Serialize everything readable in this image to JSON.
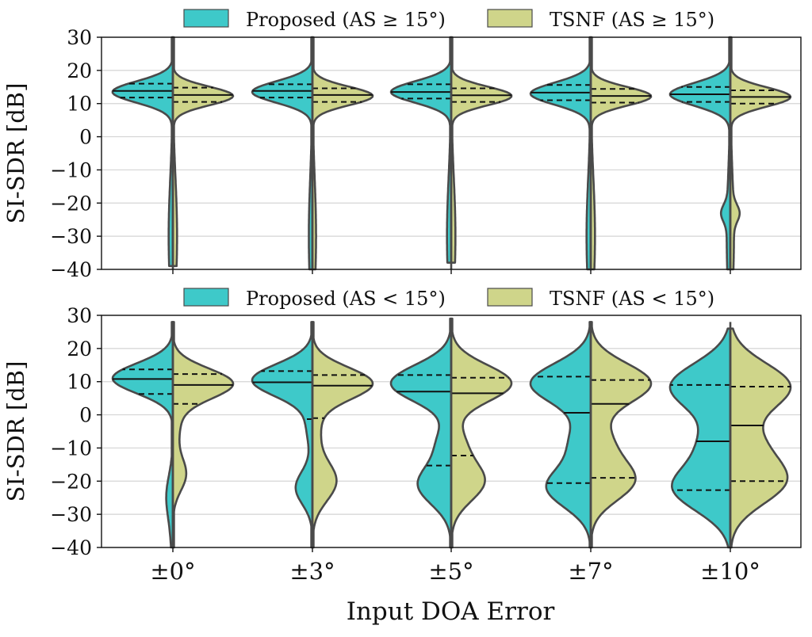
{
  "chart_data": [
    {
      "type": "violin",
      "ylabel": "SI-SDR [dB]",
      "xlabel": "",
      "ylim": [
        -40,
        30
      ],
      "yticks": [
        "30",
        "20",
        "10",
        "0",
        "−10",
        "−20",
        "−30",
        "−40"
      ],
      "categories": [
        "±0°",
        "±3°",
        "±5°",
        "±7°",
        "±10°"
      ],
      "grid": true,
      "legend": "top",
      "series": [
        {
          "name": "Proposed (AS ≥ 15°)",
          "color": "#3ec9c9",
          "side": "left",
          "groups": [
            {
              "min": -39,
              "max": 30,
              "q1": 11.8,
              "median": 13.8,
              "q3": 16.0,
              "modes": [
                [
                  13.5,
                  1.0,
                  3.2
                ],
                [
                  -30,
                  0.07,
                  18
                ]
              ]
            },
            {
              "min": -40,
              "max": 30,
              "q1": 11.8,
              "median": 13.8,
              "q3": 15.8,
              "modes": [
                [
                  13.5,
                  1.0,
                  3.2
                ],
                [
                  -30,
                  0.06,
                  18
                ]
              ]
            },
            {
              "min": -38,
              "max": 30,
              "q1": 11.5,
              "median": 13.5,
              "q3": 15.8,
              "modes": [
                [
                  13.5,
                  1.0,
                  3.2
                ],
                [
                  -30,
                  0.07,
                  18
                ]
              ]
            },
            {
              "min": -40,
              "max": 30,
              "q1": 11.0,
              "median": 13.3,
              "q3": 15.6,
              "modes": [
                [
                  13.0,
                  1.0,
                  3.3
                ],
                [
                  -30,
                  0.07,
                  18
                ]
              ]
            },
            {
              "min": -40,
              "max": 30,
              "q1": 10.5,
              "median": 12.8,
              "q3": 15.0,
              "modes": [
                [
                  12.8,
                  1.0,
                  3.4
                ],
                [
                  -23,
                  0.1,
                  2.5
                ],
                [
                  -30,
                  0.06,
                  18
                ]
              ]
            }
          ]
        },
        {
          "name": "TSNF (AS ≥ 15°)",
          "color": "#cfd58a",
          "side": "right",
          "groups": [
            {
              "min": -39,
              "max": 30,
              "q1": 10.5,
              "median": 12.6,
              "q3": 14.8,
              "modes": [
                [
                  12.3,
                  1.0,
                  2.8
                ],
                [
                  -30,
                  0.07,
                  18
                ]
              ]
            },
            {
              "min": -40,
              "max": 30,
              "q1": 10.5,
              "median": 12.6,
              "q3": 14.6,
              "modes": [
                [
                  12.3,
                  1.0,
                  2.8
                ],
                [
                  -30,
                  0.06,
                  18
                ]
              ]
            },
            {
              "min": -38,
              "max": 30,
              "q1": 10.5,
              "median": 12.5,
              "q3": 14.6,
              "modes": [
                [
                  12.3,
                  1.0,
                  2.8
                ],
                [
                  -30,
                  0.07,
                  18
                ]
              ]
            },
            {
              "min": -40,
              "max": 30,
              "q1": 10.3,
              "median": 12.3,
              "q3": 14.4,
              "modes": [
                [
                  12.2,
                  1.0,
                  2.8
                ],
                [
                  -30,
                  0.07,
                  18
                ]
              ]
            },
            {
              "min": -40,
              "max": 30,
              "q1": 10.0,
              "median": 12.0,
              "q3": 14.0,
              "modes": [
                [
                  12.0,
                  1.0,
                  2.9
                ],
                [
                  -23,
                  0.1,
                  2.5
                ],
                [
                  -30,
                  0.06,
                  18
                ]
              ]
            }
          ]
        }
      ]
    },
    {
      "type": "violin",
      "ylabel": "SI-SDR [dB]",
      "xlabel": "Input DOA Error",
      "ylim": [
        -40,
        30
      ],
      "yticks": [
        "30",
        "20",
        "10",
        "0",
        "−10",
        "−20",
        "−30",
        "−40"
      ],
      "categories": [
        "±0°",
        "±3°",
        "±5°",
        "±7°",
        "±10°"
      ],
      "grid": true,
      "legend": "top",
      "series": [
        {
          "name": "Proposed (AS < 15°)",
          "color": "#3ec9c9",
          "side": "left",
          "groups": [
            {
              "min": -40,
              "max": 28,
              "q1": 6.3,
              "median": 10.8,
              "q3": 13.7,
              "modes": [
                [
                  11.0,
                  1.0,
                  4.5
                ],
                [
                  -24,
                  0.08,
                  6
                ],
                [
                  -32,
                  0.04,
                  10
                ]
              ]
            },
            {
              "min": -40,
              "max": 28,
              "q1": -1.3,
              "median": 9.8,
              "q3": 13.2,
              "modes": [
                [
                  10.5,
                  1.0,
                  4.8
                ],
                [
                  -22,
                  0.28,
                  5
                ],
                [
                  -3,
                  0.1,
                  6
                ]
              ]
            },
            {
              "min": -40,
              "max": 29,
              "q1": -15.3,
              "median": 7.0,
              "q3": 12.0,
              "modes": [
                [
                  9.5,
                  1.0,
                  5.5
                ],
                [
                  -21,
                  0.55,
                  6
                ],
                [
                  -8,
                  0.2,
                  5
                ]
              ]
            },
            {
              "min": -40,
              "max": 28,
              "q1": -20.6,
              "median": 0.6,
              "q3": 11.5,
              "modes": [
                [
                  9.5,
                  1.0,
                  6
                ],
                [
                  -22,
                  0.72,
                  6
                ],
                [
                  -8,
                  0.32,
                  6
                ]
              ]
            },
            {
              "min": -40,
              "max": 26,
              "q1": -22.7,
              "median": -8.0,
              "q3": 9.0,
              "modes": [
                [
                  8.5,
                  1.0,
                  7
                ],
                [
                  -22,
                  0.95,
                  7
                ],
                [
                  -8,
                  0.38,
                  6
                ]
              ]
            }
          ]
        },
        {
          "name": "TSNF (AS < 15°)",
          "color": "#cfd58a",
          "side": "right",
          "groups": [
            {
              "min": -40,
              "max": 28,
              "q1": 3.3,
              "median": 9.0,
              "q3": 12.3,
              "modes": [
                [
                  9.5,
                  1.0,
                  4.5
                ],
                [
                  -18,
                  0.22,
                  5
                ],
                [
                  -2,
                  0.12,
                  7
                ]
              ]
            },
            {
              "min": -40,
              "max": 28,
              "q1": -1.0,
              "median": 8.8,
              "q3": 12.0,
              "modes": [
                [
                  9.5,
                  1.0,
                  4.8
                ],
                [
                  -20,
                  0.4,
                  6
                ],
                [
                  -4,
                  0.12,
                  6
                ]
              ]
            },
            {
              "min": -40,
              "max": 29,
              "q1": -12.3,
              "median": 6.5,
              "q3": 11.2,
              "modes": [
                [
                  9.5,
                  1.0,
                  5.5
                ],
                [
                  -20,
                  0.55,
                  6
                ],
                [
                  -8,
                  0.18,
                  5
                ]
              ]
            },
            {
              "min": -40,
              "max": 28,
              "q1": -19.0,
              "median": 3.3,
              "q3": 10.5,
              "modes": [
                [
                  9.5,
                  1.0,
                  6
                ],
                [
                  -20,
                  0.7,
                  6
                ],
                [
                  -8,
                  0.3,
                  6
                ]
              ]
            },
            {
              "min": -40,
              "max": 26,
              "q1": -20.0,
              "median": -3.2,
              "q3": 8.5,
              "modes": [
                [
                  8.5,
                  1.0,
                  7
                ],
                [
                  -20,
                  0.9,
                  7
                ],
                [
                  -8,
                  0.35,
                  6
                ]
              ]
            }
          ]
        }
      ]
    }
  ]
}
